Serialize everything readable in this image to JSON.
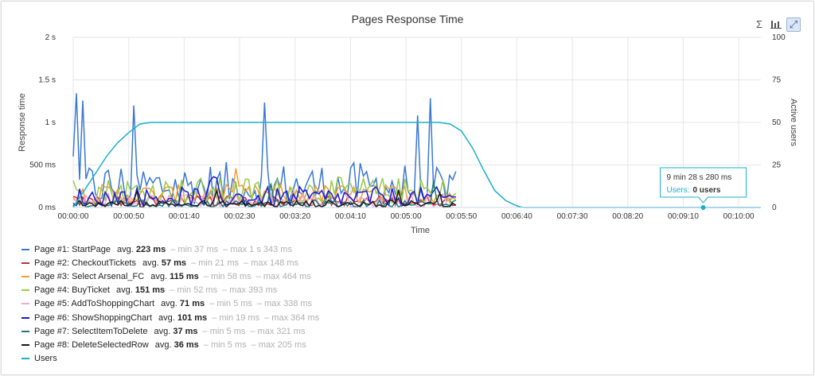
{
  "chart_data": {
    "type": "line",
    "title": "Pages Response Time",
    "xlabel": "Time",
    "ylabel_left": "Response time",
    "ylabel_right": "Active users",
    "x_ticks": [
      "00:00:00",
      "00:00:50",
      "00:01:40",
      "00:02:30",
      "00:03:20",
      "00:04:10",
      "00:05:00",
      "00:05:50",
      "00:06:40",
      "00:07:30",
      "00:08:20",
      "00:09:10",
      "00:10:00"
    ],
    "y_left_ticks": [
      "0 ms",
      "500 ms",
      "1 s",
      "1.5 s",
      "2 s"
    ],
    "y_right_ticks": [
      "0",
      "25",
      "50",
      "75",
      "100"
    ],
    "xlim_seconds": [
      0,
      620
    ],
    "ylim_left_ms": [
      0,
      2000
    ],
    "ylim_right_users": [
      0,
      100
    ],
    "grid": true,
    "legend_position": "bottom-left",
    "series": [
      {
        "name": "Page #1: StartPage",
        "color": "#3a78d4",
        "avg": "223 ms",
        "min": "min 37 ms",
        "max": "max 1 s 343 ms",
        "avg_ms": 223,
        "min_ms": 37,
        "max_ms": 1343
      },
      {
        "name": "Page #2: CheckoutTickets",
        "color": "#c0302b",
        "avg": "57 ms",
        "min": "min 21 ms",
        "max": "max 148 ms",
        "avg_ms": 57,
        "min_ms": 21,
        "max_ms": 148
      },
      {
        "name": "Page #3: Select Arsenal_FC",
        "color": "#f0a030",
        "avg": "115 ms",
        "min": "min 58 ms",
        "max": "max 464 ms",
        "avg_ms": 115,
        "min_ms": 58,
        "max_ms": 464
      },
      {
        "name": "Page #4: BuyTicket",
        "color": "#9bc84a",
        "avg": "151 ms",
        "min": "min 52 ms",
        "max": "max 393 ms",
        "avg_ms": 151,
        "min_ms": 52,
        "max_ms": 393
      },
      {
        "name": "Page #5: AddToShoppingChart",
        "color": "#f5a8d0",
        "avg": "71 ms",
        "min": "min 5 ms",
        "max": "max 338 ms",
        "avg_ms": 71,
        "min_ms": 5,
        "max_ms": 338
      },
      {
        "name": "Page #6: ShowShoppingChart",
        "color": "#1a1ad0",
        "avg": "101 ms",
        "min": "min 19 ms",
        "max": "max 364 ms",
        "avg_ms": 101,
        "min_ms": 19,
        "max_ms": 364
      },
      {
        "name": "Page #7: SelectItemToDelete",
        "color": "#1e7a7a",
        "avg": "37 ms",
        "min": "min 5 ms",
        "max": "max 321 ms",
        "avg_ms": 37,
        "min_ms": 5,
        "max_ms": 321
      },
      {
        "name": "Page #8: DeleteSelectedRow",
        "color": "#1a1a1a",
        "avg": "36 ms",
        "min": "min 5 ms",
        "max": "max 205 ms",
        "avg_ms": 36,
        "min_ms": 5,
        "max_ms": 205
      }
    ],
    "users_series": {
      "name": "Users",
      "color": "#1ab0cc",
      "points": [
        [
          0,
          0
        ],
        [
          10,
          10
        ],
        [
          20,
          20
        ],
        [
          30,
          30
        ],
        [
          40,
          38
        ],
        [
          50,
          44
        ],
        [
          60,
          49
        ],
        [
          70,
          50
        ],
        [
          100,
          50
        ],
        [
          200,
          50
        ],
        [
          300,
          50
        ],
        [
          330,
          50
        ],
        [
          340,
          49
        ],
        [
          350,
          45
        ],
        [
          360,
          35
        ],
        [
          370,
          22
        ],
        [
          380,
          10
        ],
        [
          390,
          4
        ],
        [
          400,
          1
        ],
        [
          405,
          0
        ],
        [
          620,
          0
        ]
      ]
    },
    "tooltip": {
      "time": "9 min 28 s 280 ms",
      "label": "Users:",
      "value": "0 users",
      "x_seconds": 568,
      "users": 0
    }
  },
  "toolbar": {
    "icons": [
      "sum-icon",
      "bar-chart-icon",
      "fullscreen-icon"
    ]
  }
}
